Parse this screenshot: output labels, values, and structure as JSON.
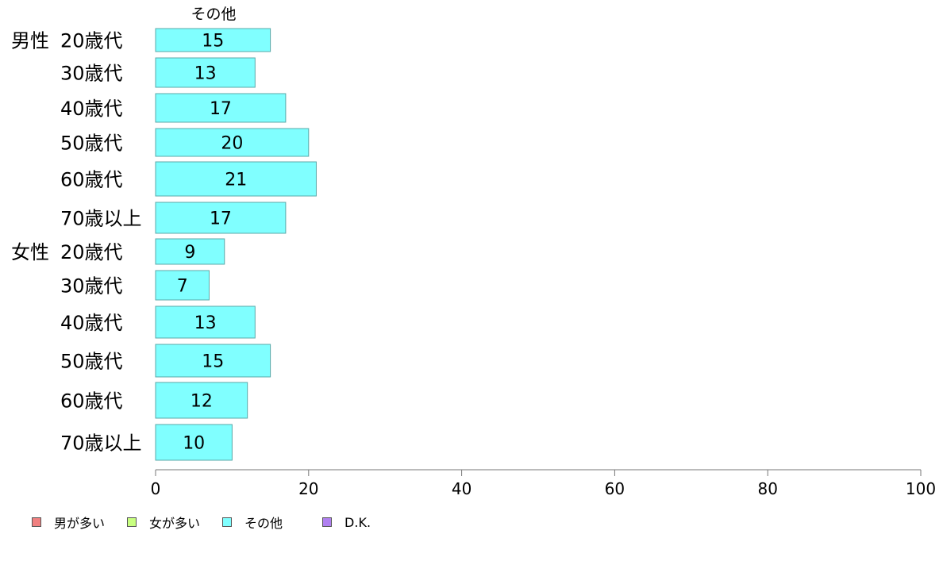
{
  "chart_data": {
    "type": "bar",
    "orientation": "horizontal",
    "series_label_top": "その他",
    "rows": [
      {
        "group": "男性",
        "label": "20歳代",
        "value": 15
      },
      {
        "group": "",
        "label": "30歳代",
        "value": 13
      },
      {
        "group": "",
        "label": "40歳代",
        "value": 17
      },
      {
        "group": "",
        "label": "50歳代",
        "value": 20
      },
      {
        "group": "",
        "label": "60歳代",
        "value": 21
      },
      {
        "group": "",
        "label": "70歳以上",
        "value": 17
      },
      {
        "group": "女性",
        "label": "20歳代",
        "value": 9
      },
      {
        "group": "",
        "label": "30歳代",
        "value": 7
      },
      {
        "group": "",
        "label": "40歳代",
        "value": 13
      },
      {
        "group": "",
        "label": "50歳代",
        "value": 15
      },
      {
        "group": "",
        "label": "60歳代",
        "value": 12
      },
      {
        "group": "",
        "label": "70歳以上",
        "value": 10
      }
    ],
    "xlim": [
      0,
      100
    ],
    "xticks": [
      0,
      20,
      40,
      60,
      80,
      100
    ],
    "bar_color": "#80ffff",
    "bar_edge_color": "#5aa8a8",
    "legend_position": "bottom-left"
  },
  "legend": {
    "items": [
      {
        "label": "男が多い",
        "color": "#f08080"
      },
      {
        "label": "女が多い",
        "color": "#c8ff80"
      },
      {
        "label": "その他",
        "color": "#80ffff"
      },
      {
        "label": "D.K.",
        "color": "#b080f0"
      }
    ]
  }
}
